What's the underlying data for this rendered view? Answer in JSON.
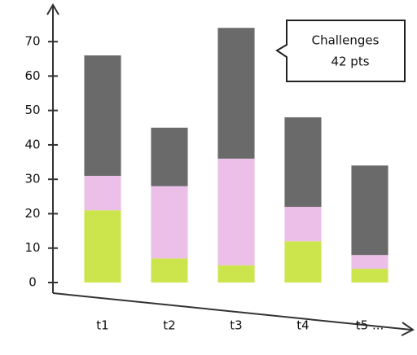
{
  "chart_data": {
    "type": "stacked_bar",
    "categories": [
      "t1",
      "t2",
      "t3",
      "t4",
      "t5 ..."
    ],
    "series": [
      {
        "color": "#c8e23a",
        "values": [
          21,
          7,
          5,
          12,
          4
        ]
      },
      {
        "color": "#eab8e6",
        "values": [
          10,
          21,
          31,
          10,
          4
        ]
      },
      {
        "color": "#5a5a5a",
        "values": [
          35,
          17,
          38,
          26,
          26
        ]
      }
    ],
    "ylim": [
      0,
      75
    ],
    "yticks": [
      0,
      10,
      20,
      30,
      40,
      50,
      60,
      70
    ],
    "grid": false,
    "annotation": {
      "title": "Challenges",
      "text": "42 pts"
    }
  }
}
